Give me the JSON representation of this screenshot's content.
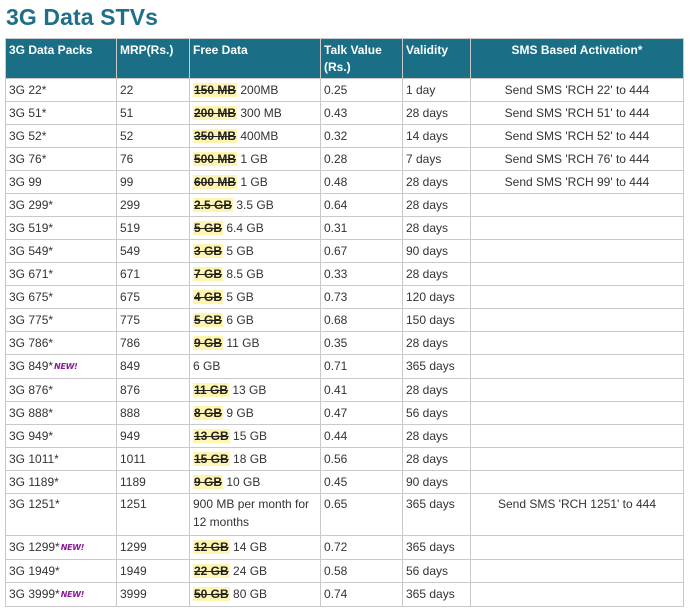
{
  "page": {
    "title": "3G Data STVs"
  },
  "table": {
    "headers": {
      "packs": "3G Data Packs",
      "mrp": "MRP(Rs.)",
      "free_data": "Free Data",
      "talk_value": "Talk Value (Rs.)",
      "validity": "Validity",
      "sms": "SMS Based Activation*"
    },
    "new_badge": "NEW!",
    "rows": [
      {
        "pack": "3G 22*",
        "new": false,
        "mrp": "22",
        "old_data": "150 MB",
        "data": "200MB",
        "talk": "0.25",
        "validity": "1 day",
        "sms": "Send SMS 'RCH 22' to 444"
      },
      {
        "pack": "3G 51*",
        "new": false,
        "mrp": "51",
        "old_data": "200 MB",
        "data": "300 MB",
        "talk": "0.43",
        "validity": "28 days",
        "sms": "Send SMS 'RCH 51' to 444"
      },
      {
        "pack": "3G 52*",
        "new": false,
        "mrp": "52",
        "old_data": "350 MB",
        "data": "400MB",
        "talk": "0.32",
        "validity": "14 days",
        "sms": "Send SMS 'RCH 52' to 444"
      },
      {
        "pack": "3G 76*",
        "new": false,
        "mrp": "76",
        "old_data": "500 MB",
        "data": "1 GB",
        "talk": "0.28",
        "validity": "7 days",
        "sms": "Send SMS 'RCH 76' to 444"
      },
      {
        "pack": "3G 99",
        "new": false,
        "mrp": "99",
        "old_data": "600 MB",
        "data": "1 GB",
        "talk": "0.48",
        "validity": "28 days",
        "sms": "Send SMS 'RCH 99' to 444"
      },
      {
        "pack": "3G 299*",
        "new": false,
        "mrp": "299",
        "old_data": "2.5 GB",
        "data": "3.5 GB",
        "talk": "0.64",
        "validity": "28 days",
        "sms": ""
      },
      {
        "pack": "3G 519*",
        "new": false,
        "mrp": "519",
        "old_data": "5 GB",
        "data": "6.4 GB",
        "talk": "0.31",
        "validity": "28 days",
        "sms": ""
      },
      {
        "pack": "3G 549*",
        "new": false,
        "mrp": "549",
        "old_data": "3 GB",
        "data": "5 GB",
        "talk": "0.67",
        "validity": "90 days",
        "sms": ""
      },
      {
        "pack": "3G 671*",
        "new": false,
        "mrp": "671",
        "old_data": "7 GB",
        "data": "8.5 GB",
        "talk": "0.33",
        "validity": "28 days",
        "sms": ""
      },
      {
        "pack": "3G 675*",
        "new": false,
        "mrp": "675",
        "old_data": "4 GB",
        "data": "5 GB",
        "talk": "0.73",
        "validity": "120 days",
        "sms": ""
      },
      {
        "pack": "3G 775*",
        "new": false,
        "mrp": "775",
        "old_data": "5 GB",
        "data": "6 GB",
        "talk": "0.68",
        "validity": "150 days",
        "sms": ""
      },
      {
        "pack": "3G 786*",
        "new": false,
        "mrp": "786",
        "old_data": "9 GB",
        "data": "11 GB",
        "talk": "0.35",
        "validity": "28 days",
        "sms": ""
      },
      {
        "pack": "3G 849*",
        "new": true,
        "mrp": "849",
        "old_data": "",
        "data": "6 GB",
        "talk": "0.71",
        "validity": "365 days",
        "sms": ""
      },
      {
        "pack": "3G 876*",
        "new": false,
        "mrp": "876",
        "old_data": "11 GB",
        "data": "13 GB",
        "talk": "0.41",
        "validity": "28 days",
        "sms": ""
      },
      {
        "pack": "3G 888*",
        "new": false,
        "mrp": "888",
        "old_data": "8 GB",
        "data": "9 GB",
        "talk": "0.47",
        "validity": "56 days",
        "sms": ""
      },
      {
        "pack": "3G 949*",
        "new": false,
        "mrp": "949",
        "old_data": "13 GB",
        "data": "15 GB",
        "talk": "0.44",
        "validity": "28 days",
        "sms": ""
      },
      {
        "pack": "3G 1011*",
        "new": false,
        "mrp": "1011",
        "old_data": "15 GB",
        "data": "18 GB",
        "talk": "0.56",
        "validity": "28 days",
        "sms": ""
      },
      {
        "pack": "3G 1189*",
        "new": false,
        "mrp": "1189",
        "old_data": "9 GB",
        "data": "10 GB",
        "talk": "0.45",
        "validity": "90 days",
        "sms": ""
      },
      {
        "pack": "3G 1251*",
        "new": false,
        "mrp": "1251",
        "old_data": "",
        "data": "900 MB per month for 12 months",
        "talk": "0.65",
        "validity": "365 days",
        "sms": "Send SMS 'RCH 1251' to 444"
      },
      {
        "pack": "3G 1299*",
        "new": true,
        "mrp": "1299",
        "old_data": "12 GB",
        "data": "14 GB",
        "talk": "0.72",
        "validity": "365 days",
        "sms": ""
      },
      {
        "pack": "3G 1949*",
        "new": false,
        "mrp": "1949",
        "old_data": "22 GB",
        "data": "24 GB",
        "talk": "0.58",
        "validity": "56 days",
        "sms": ""
      },
      {
        "pack": "3G 3999*",
        "new": true,
        "mrp": "3999",
        "old_data": "50 GB",
        "data": "80 GB",
        "talk": "0.74",
        "validity": "365 days",
        "sms": ""
      }
    ]
  }
}
